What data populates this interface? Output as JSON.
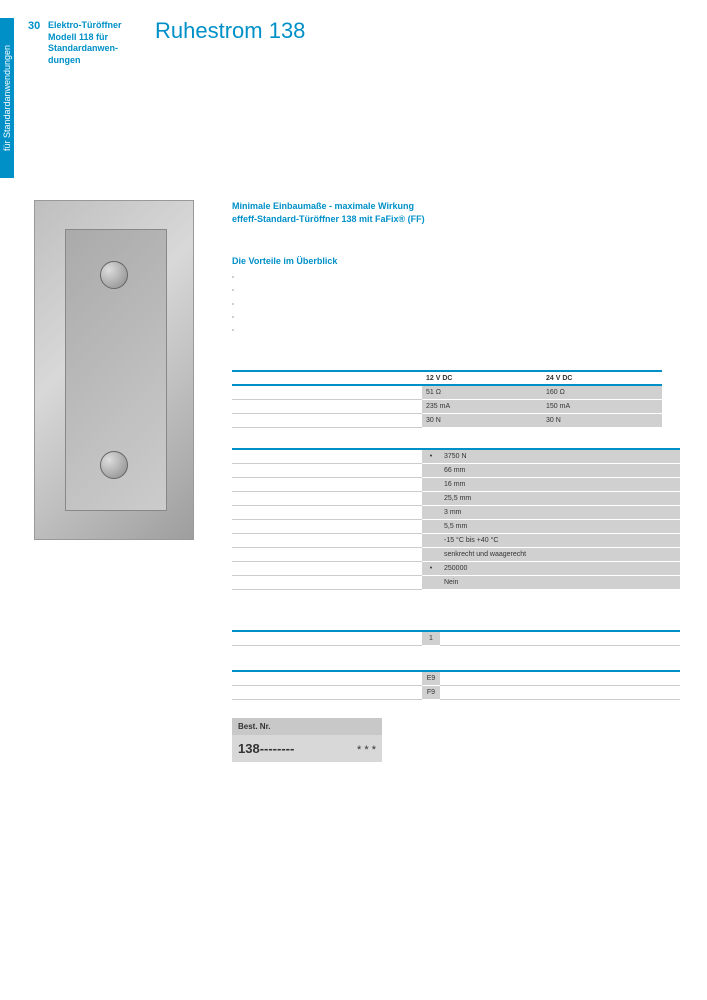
{
  "side_tab": "für Standardanwendungen",
  "page_number": "30",
  "header_lines": [
    "Elektro-Türöffner",
    "Modell 118 für",
    "Standardanwen-",
    "dungen"
  ],
  "title": "Ruhestrom 138",
  "subtitle_lines": [
    "Minimale Einbaumaße - maximale Wirkung",
    "effeff-Standard-Türöffner 138 mit FaFix® (FF)"
  ],
  "advantages_head": "Die Vorteile im Überblick",
  "advantages": [
    "",
    "",
    "",
    "",
    ""
  ],
  "table_electrical": {
    "headers": [
      "12 V DC",
      "24 V DC"
    ],
    "rows": [
      [
        "51 Ω",
        "160 Ω"
      ],
      [
        "235 mA",
        "150 mA"
      ],
      [
        "30 N",
        "30 N"
      ]
    ]
  },
  "table_mechanical": {
    "rows": [
      {
        "marker": "•",
        "value": "3750 N"
      },
      {
        "marker": "",
        "value": "66 mm"
      },
      {
        "marker": "",
        "value": "16 mm"
      },
      {
        "marker": "",
        "value": "25,5 mm"
      },
      {
        "marker": "",
        "value": "3 mm"
      },
      {
        "marker": "",
        "value": "5,5 mm"
      },
      {
        "marker": "",
        "value": "-15 °C bis +40 °C"
      },
      {
        "marker": "",
        "value": "senkrecht und waagerecht"
      },
      {
        "marker": "•",
        "value": "250000"
      },
      {
        "marker": "",
        "value": "Nein"
      }
    ]
  },
  "table_options": {
    "rows": [
      {
        "marker": "1",
        "value": ""
      }
    ]
  },
  "table_codes": {
    "rows": [
      {
        "marker": "E9",
        "value": ""
      },
      {
        "marker": "F9",
        "value": ""
      }
    ]
  },
  "order": {
    "head": "Best. Nr.",
    "number": "138--------",
    "stars": "* * *"
  },
  "colors": {
    "brand": "#0090c8",
    "cell_bg": "#d0d0d0",
    "order_hdr_bg": "#c8c8c8",
    "order_body_bg": "#d8d8d8"
  }
}
